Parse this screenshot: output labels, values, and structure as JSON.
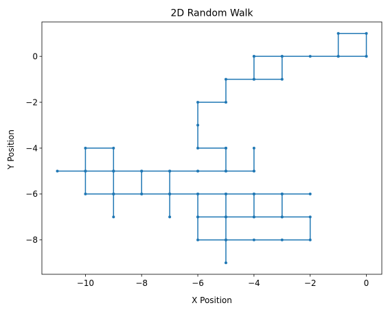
{
  "chart_data": {
    "type": "line",
    "title": "2D Random Walk",
    "xlabel": "X Position",
    "ylabel": "Y Position",
    "xlim": [
      -11.55,
      0.55
    ],
    "ylim": [
      -9.5,
      1.5
    ],
    "xticks": [
      -10,
      -8,
      -6,
      -4,
      -2,
      0
    ],
    "yticks": [
      -8,
      -6,
      -4,
      -2,
      0
    ],
    "x_tick_labels": [
      "−10",
      "−8",
      "−6",
      "−4",
      "−2",
      "0"
    ],
    "y_tick_labels": [
      "−8",
      "−6",
      "−4",
      "−2",
      "0"
    ],
    "grid": false,
    "series": [
      {
        "color": "#1f77b4",
        "marker": "circle",
        "points": [
          [
            0,
            0
          ],
          [
            0,
            1
          ],
          [
            -1,
            1
          ],
          [
            -1,
            0
          ],
          [
            0,
            0
          ],
          [
            -1,
            0
          ],
          [
            -2,
            0
          ],
          [
            -3,
            0
          ],
          [
            -4,
            0
          ],
          [
            -4,
            -1
          ],
          [
            -3,
            -1
          ],
          [
            -3,
            0
          ],
          [
            -4,
            0
          ],
          [
            -4,
            -1
          ],
          [
            -5,
            -1
          ],
          [
            -5,
            -2
          ],
          [
            -6,
            -2
          ],
          [
            -6,
            -3
          ],
          [
            -6,
            -4
          ],
          [
            -5,
            -4
          ],
          [
            -5,
            -5
          ],
          [
            -6,
            -5
          ],
          [
            -7,
            -5
          ],
          [
            -8,
            -5
          ],
          [
            -9,
            -5
          ],
          [
            -10,
            -5
          ],
          [
            -11,
            -5
          ],
          [
            -10,
            -5
          ],
          [
            -10,
            -4
          ],
          [
            -9,
            -4
          ],
          [
            -9,
            -5
          ],
          [
            -9,
            -6
          ],
          [
            -9,
            -7
          ],
          [
            -9,
            -6
          ],
          [
            -10,
            -6
          ],
          [
            -10,
            -5
          ],
          [
            -9,
            -5
          ],
          [
            -8,
            -5
          ],
          [
            -8,
            -6
          ],
          [
            -7,
            -6
          ],
          [
            -7,
            -7
          ],
          [
            -7,
            -6
          ],
          [
            -6,
            -6
          ],
          [
            -6,
            -7
          ],
          [
            -6,
            -8
          ],
          [
            -5,
            -8
          ],
          [
            -5,
            -9
          ],
          [
            -5,
            -8
          ],
          [
            -5,
            -7
          ],
          [
            -6,
            -7
          ],
          [
            -5,
            -7
          ],
          [
            -4,
            -7
          ],
          [
            -3,
            -7
          ],
          [
            -2,
            -7
          ],
          [
            -2,
            -8
          ],
          [
            -3,
            -8
          ],
          [
            -4,
            -8
          ],
          [
            -5,
            -8
          ],
          [
            -5,
            -7
          ],
          [
            -5,
            -6
          ],
          [
            -4,
            -6
          ],
          [
            -4,
            -7
          ],
          [
            -4,
            -6
          ],
          [
            -3,
            -6
          ],
          [
            -3,
            -7
          ],
          [
            -3,
            -6
          ],
          [
            -2,
            -6
          ],
          [
            -3,
            -6
          ],
          [
            -4,
            -6
          ],
          [
            -5,
            -6
          ],
          [
            -6,
            -6
          ],
          [
            -7,
            -6
          ],
          [
            -8,
            -6
          ],
          [
            -9,
            -6
          ],
          [
            -9,
            -5
          ],
          [
            -8,
            -5
          ],
          [
            -7,
            -5
          ],
          [
            -7,
            -6
          ],
          [
            -7,
            -5
          ],
          [
            -6,
            -5
          ],
          [
            -5,
            -5
          ],
          [
            -4,
            -5
          ],
          [
            -4,
            -4
          ],
          [
            -4,
            -5
          ],
          [
            -5,
            -5
          ],
          [
            -5,
            -4
          ]
        ]
      }
    ]
  }
}
